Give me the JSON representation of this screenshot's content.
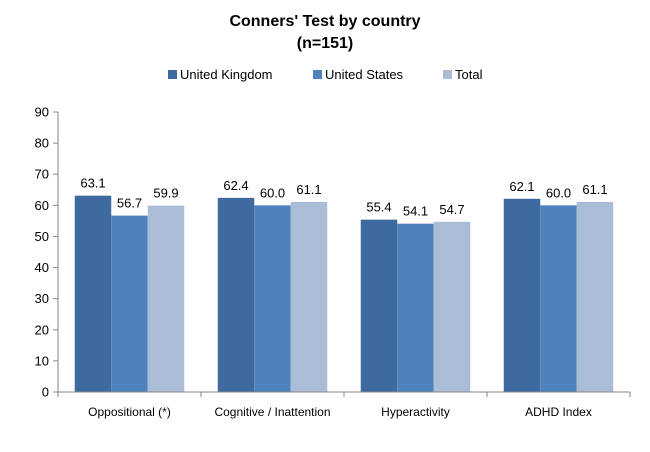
{
  "chart_data": {
    "type": "bar",
    "title": "Conners' Test by country",
    "subtitle": "(n=151)",
    "categories": [
      "Oppositional (*)",
      "Cognitive / Inattention",
      "Hyperactivity",
      "ADHD Index"
    ],
    "series": [
      {
        "name": "United Kingdom",
        "color": "#3F6AA0",
        "values": [
          63.1,
          62.4,
          55.4,
          62.1
        ],
        "labels": [
          "63.1",
          "62.4",
          "55.4",
          "62.1"
        ]
      },
      {
        "name": "United States",
        "color": "#4F81BD",
        "values": [
          56.7,
          60.0,
          54.1,
          60.0
        ],
        "labels": [
          "56.7",
          "60.0",
          "54.1",
          "60.0"
        ]
      },
      {
        "name": "Total",
        "color": "#ABBCD6",
        "values": [
          59.9,
          61.1,
          54.7,
          61.1
        ],
        "labels": [
          "59.9",
          "61.1",
          "54.7",
          "61.1"
        ]
      }
    ],
    "ylim": [
      0,
      90
    ],
    "yticks": [
      "0",
      "10",
      "20",
      "30",
      "40",
      "50",
      "60",
      "70",
      "80",
      "90"
    ],
    "grid": false,
    "legend_position": "top"
  }
}
